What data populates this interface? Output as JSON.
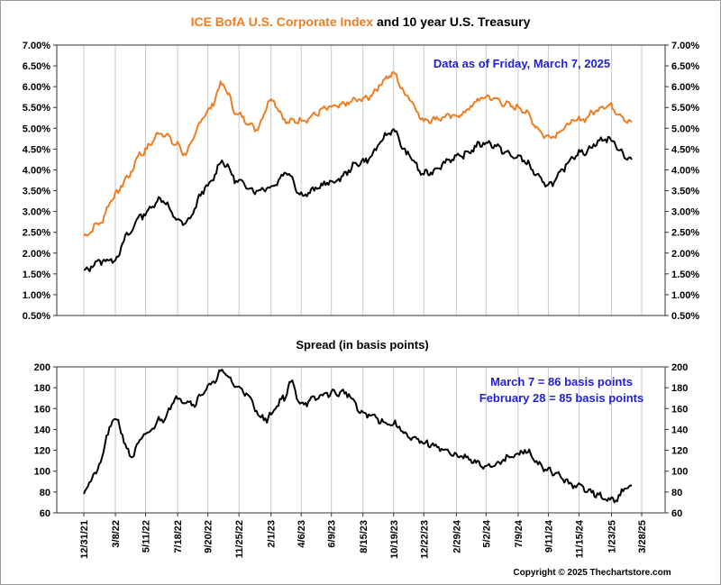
{
  "title_part1": "ICE BofA U.S. Corporate Index",
  "title_part2": " and 10 year U.S. Treasury",
  "title_color_1": "#ee7d22",
  "data_note": "Data as of Friday, March 7, 2025",
  "copyright": "Copyright © 2025 Thechartstore.com",
  "colors": {
    "corporate": "#ee7d22",
    "treasury": "#000000",
    "spread": "#000000",
    "note": "#1f1fd6",
    "grid": "#c8c8c8"
  },
  "chart_data": [
    {
      "type": "line",
      "title": "ICE BofA U.S. Corporate Index and 10 year U.S. Treasury",
      "y_tick_labels": [
        "0.50%",
        "1.00%",
        "1.50%",
        "2.00%",
        "2.50%",
        "3.00%",
        "3.50%",
        "4.00%",
        "4.50%",
        "5.00%",
        "5.50%",
        "6.00%",
        "6.50%",
        "7.00%"
      ],
      "ylim": [
        0.5,
        7.0
      ],
      "grid": "vertical",
      "annotation": "Data as of Friday, March 7, 2025",
      "series": [
        {
          "key": "corporate",
          "x": [
            "2021-12-31",
            "2022-01-31",
            "2022-03-08",
            "2022-04-01",
            "2022-05-01",
            "2022-06-14",
            "2022-07-18",
            "2022-08-01",
            "2022-09-20",
            "2022-10-20",
            "2022-11-25",
            "2023-01-01",
            "2023-02-01",
            "2023-03-08",
            "2023-04-06",
            "2023-06-09",
            "2023-08-15",
            "2023-10-19",
            "2023-11-15",
            "2023-12-22",
            "2024-02-29",
            "2024-05-02",
            "2024-07-09",
            "2024-09-11",
            "2024-11-15",
            "2025-01-13",
            "2025-03-07"
          ],
          "y": [
            2.4,
            2.7,
            3.4,
            3.8,
            4.4,
            4.9,
            4.6,
            4.4,
            5.4,
            6.05,
            5.3,
            5.0,
            5.7,
            5.15,
            5.2,
            5.5,
            5.7,
            6.3,
            5.8,
            5.2,
            5.3,
            5.75,
            5.5,
            4.8,
            5.2,
            5.55,
            5.15
          ]
        },
        {
          "key": "treasury",
          "x": [
            "2021-12-31",
            "2022-01-31",
            "2022-03-08",
            "2022-04-01",
            "2022-05-01",
            "2022-06-14",
            "2022-07-18",
            "2022-08-01",
            "2022-09-20",
            "2022-10-20",
            "2022-11-25",
            "2023-01-01",
            "2023-02-01",
            "2023-03-08",
            "2023-04-06",
            "2023-06-09",
            "2023-08-15",
            "2023-10-19",
            "2023-11-15",
            "2023-12-22",
            "2024-02-29",
            "2024-05-02",
            "2024-07-09",
            "2024-09-11",
            "2024-11-15",
            "2025-01-13",
            "2025-03-07"
          ],
          "y": [
            1.55,
            1.8,
            1.85,
            2.4,
            2.9,
            3.3,
            2.8,
            2.7,
            3.6,
            4.2,
            3.7,
            3.5,
            3.6,
            3.95,
            3.4,
            3.7,
            4.2,
            4.95,
            4.4,
            3.9,
            4.3,
            4.65,
            4.3,
            3.65,
            4.4,
            4.75,
            4.25
          ]
        }
      ]
    },
    {
      "type": "line",
      "title": "Spread (in basis points)",
      "y_tick_labels": [
        "60",
        "80",
        "100",
        "120",
        "140",
        "160",
        "180",
        "200"
      ],
      "ylim": [
        60,
        200
      ],
      "grid": "vertical",
      "annotations": [
        "March 7 = 86 basis points",
        "February 28 = 85 basis points"
      ],
      "x_tick_labels": [
        "12/31/21",
        "3/8/22",
        "5/11/22",
        "7/18/22",
        "9/20/22",
        "11/25/22",
        "2/1/23",
        "4/6/23",
        "6/9/23",
        "8/15/23",
        "10/19/23",
        "12/22/23",
        "2/29/24",
        "5/2/24",
        "7/9/24",
        "9/11/24",
        "11/15/24",
        "1/23/25",
        "3/28/25"
      ],
      "series": [
        {
          "key": "spread",
          "x": [
            "2021-12-31",
            "2022-01-20",
            "2022-03-08",
            "2022-04-10",
            "2022-05-11",
            "2022-06-14",
            "2022-07-18",
            "2022-08-20",
            "2022-09-20",
            "2022-10-20",
            "2022-11-25",
            "2023-01-20",
            "2023-03-01",
            "2023-03-15",
            "2023-04-06",
            "2023-06-09",
            "2023-07-10",
            "2023-08-15",
            "2023-10-19",
            "2023-12-01",
            "2024-01-10",
            "2024-02-29",
            "2024-05-02",
            "2024-07-09",
            "2024-07-20",
            "2024-09-11",
            "2024-11-15",
            "2025-01-23",
            "2025-03-07"
          ],
          "y": [
            80,
            95,
            150,
            115,
            135,
            150,
            170,
            165,
            180,
            195,
            180,
            150,
            170,
            185,
            165,
            175,
            175,
            155,
            145,
            130,
            125,
            115,
            105,
            115,
            120,
            100,
            85,
            72,
            86
          ]
        }
      ]
    }
  ]
}
